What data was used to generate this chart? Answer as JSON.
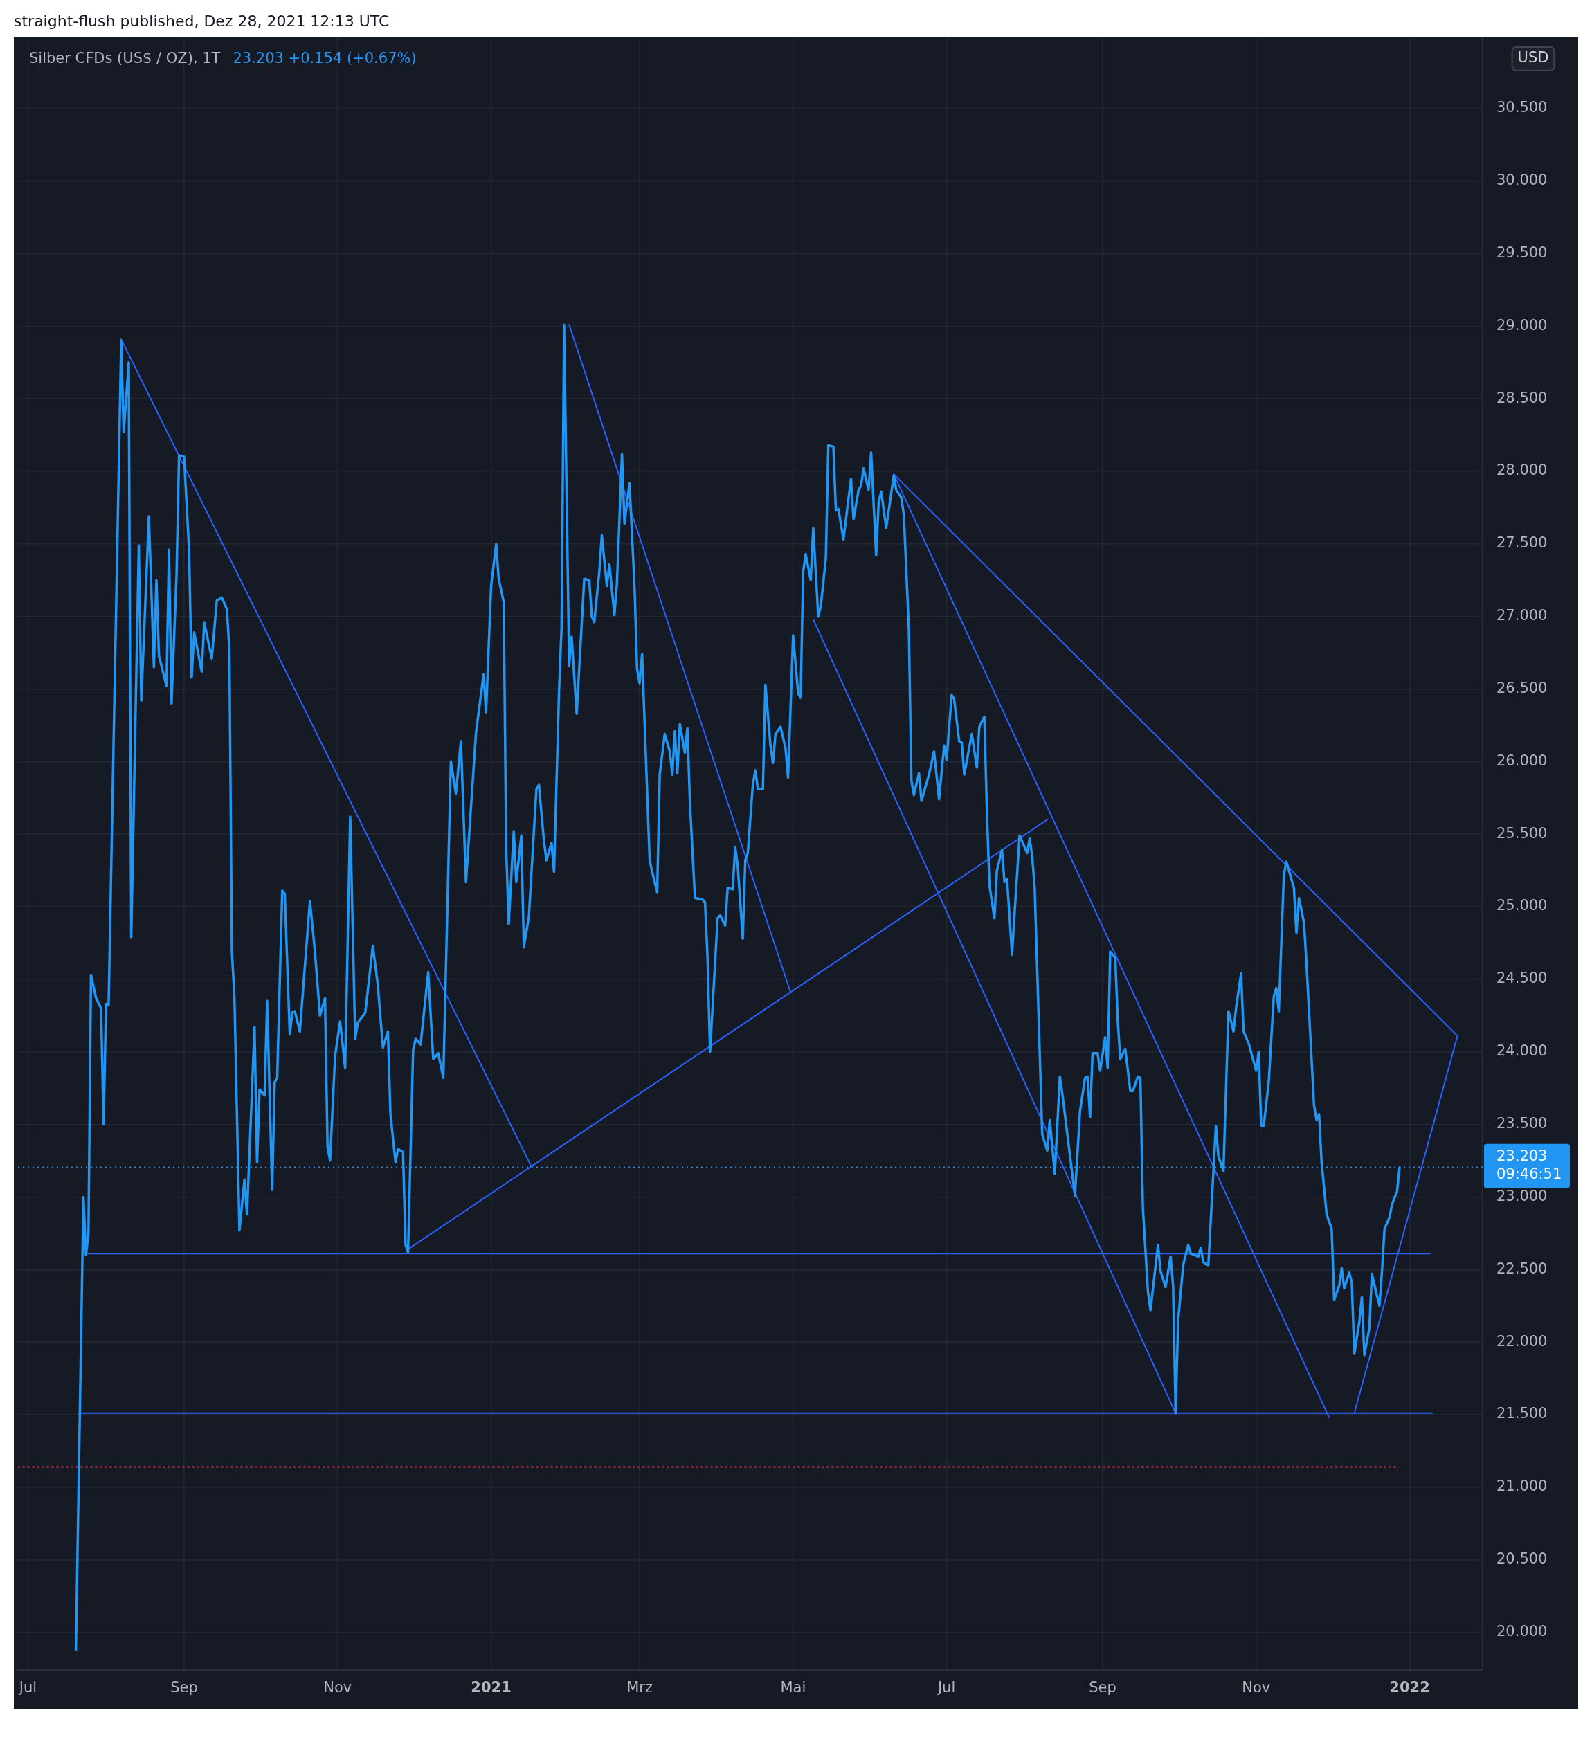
{
  "chart_data": {
    "type": "line",
    "title": "Silber CFDs (US$ / OZ), 1T",
    "subtitle": "23.203 +0.154 (+0.67%)",
    "ylabel": "USD",
    "annotations": [
      "straight-flush published, Dez 28, 2021 12:13 UTC",
      "09:46:51"
    ],
    "xlim": [
      "2020-06-27",
      "2022-01-30"
    ],
    "xticks": [
      {
        "value": "2020-07-01",
        "label": "Jul"
      },
      {
        "value": "2020-09-01",
        "label": "Sep"
      },
      {
        "value": "2020-11-01",
        "label": "Nov"
      },
      {
        "value": "2021-01-01",
        "label": "2021"
      },
      {
        "value": "2021-03-01",
        "label": "Mrz"
      },
      {
        "value": "2021-05-01",
        "label": "Mai"
      },
      {
        "value": "2021-07-01",
        "label": "Jul"
      },
      {
        "value": "2021-09-01",
        "label": "Sep"
      },
      {
        "value": "2021-11-01",
        "label": "Nov"
      },
      {
        "value": "2022-01-01",
        "label": "2022"
      }
    ],
    "ylim": [
      19.74,
      30.99
    ],
    "yticks": [
      {
        "value": 20,
        "label": "20.000"
      },
      {
        "value": 20.5,
        "label": "20.500"
      },
      {
        "value": 21,
        "label": "21.000"
      },
      {
        "value": 21.5,
        "label": "21.500"
      },
      {
        "value": 22,
        "label": "22.000"
      },
      {
        "value": 22.5,
        "label": "22.500"
      },
      {
        "value": 23,
        "label": "23.000"
      },
      {
        "value": 23.5,
        "label": "23.500"
      },
      {
        "value": 24,
        "label": "24.000"
      },
      {
        "value": 24.5,
        "label": "24.500"
      },
      {
        "value": 25,
        "label": "25.000"
      },
      {
        "value": 25.5,
        "label": "25.500"
      },
      {
        "value": 26,
        "label": "26.000"
      },
      {
        "value": 26.5,
        "label": "26.500"
      },
      {
        "value": 27,
        "label": "27.000"
      },
      {
        "value": 27.5,
        "label": "27.500"
      },
      {
        "value": 28,
        "label": "28.000"
      },
      {
        "value": 28.5,
        "label": "28.500"
      },
      {
        "value": 29,
        "label": "29.000"
      },
      {
        "value": 29.5,
        "label": "29.500"
      },
      {
        "value": 30,
        "label": "30.000"
      },
      {
        "value": 30.5,
        "label": "30.500"
      }
    ],
    "grid": true,
    "ref_lines": [
      {
        "axis": "y",
        "value": 23.203,
        "label": "23.203",
        "color": "#2196f3",
        "line_style": "dotted"
      }
    ],
    "series": [
      {
        "color": "#2196f3",
        "x": [
          "2020-07-20",
          "2020-07-23",
          "2020-07-24",
          "2020-07-25",
          "2020-07-26",
          "2020-07-28",
          "2020-07-30",
          "2020-07-31",
          "2020-08-01",
          "2020-08-02",
          "2020-08-07",
          "2020-08-08",
          "2020-08-10",
          "2020-08-11",
          "2020-08-14",
          "2020-08-15",
          "2020-08-18",
          "2020-08-20",
          "2020-08-21",
          "2020-08-22",
          "2020-08-25",
          "2020-08-26",
          "2020-08-27",
          "2020-08-29",
          "2020-08-30",
          "2020-09-01",
          "2020-09-03",
          "2020-09-04",
          "2020-09-05",
          "2020-09-08",
          "2020-09-09",
          "2020-09-12",
          "2020-09-14",
          "2020-09-16",
          "2020-09-18",
          "2020-09-19",
          "2020-09-20",
          "2020-09-21",
          "2020-09-23",
          "2020-09-25",
          "2020-09-26",
          "2020-09-29",
          "2020-09-30",
          "2020-10-01",
          "2020-10-03",
          "2020-10-04",
          "2020-10-06",
          "2020-10-07",
          "2020-10-08",
          "2020-10-10",
          "2020-10-11",
          "2020-10-13",
          "2020-10-14",
          "2020-10-15",
          "2020-10-17",
          "2020-10-21",
          "2020-10-23",
          "2020-10-25",
          "2020-10-27",
          "2020-10-28",
          "2020-10-29",
          "2020-10-31",
          "2020-11-02",
          "2020-11-04",
          "2020-11-06",
          "2020-11-08",
          "2020-11-09",
          "2020-11-12",
          "2020-11-15",
          "2020-11-17",
          "2020-11-19",
          "2020-11-21",
          "2020-11-22",
          "2020-11-24",
          "2020-11-25",
          "2020-11-27",
          "2020-11-28",
          "2020-11-29",
          "2020-12-01",
          "2020-12-02",
          "2020-12-04",
          "2020-12-07",
          "2020-12-09",
          "2020-12-11",
          "2020-12-13",
          "2020-12-16",
          "2020-12-18",
          "2020-12-20",
          "2020-12-22",
          "2020-12-26",
          "2020-12-29",
          "2020-12-30",
          "2021-01-01",
          "2021-01-03",
          "2021-01-04",
          "2021-01-06",
          "2021-01-07",
          "2021-01-08",
          "2021-01-10",
          "2021-01-11",
          "2021-01-13",
          "2021-01-14",
          "2021-01-16",
          "2021-01-19",
          "2021-01-20",
          "2021-01-22",
          "2021-01-23",
          "2021-01-25",
          "2021-01-26",
          "2021-01-28",
          "2021-01-29",
          "2021-01-30",
          "2021-02-01",
          "2021-02-02",
          "2021-02-04",
          "2021-02-07",
          "2021-02-09",
          "2021-02-10",
          "2021-02-11",
          "2021-02-13",
          "2021-02-14",
          "2021-02-16",
          "2021-02-17",
          "2021-02-19",
          "2021-02-20",
          "2021-02-22",
          "2021-02-23",
          "2021-02-25",
          "2021-02-27",
          "2021-02-28",
          "2021-03-01",
          "2021-03-02",
          "2021-03-05",
          "2021-03-06",
          "2021-03-08",
          "2021-03-09",
          "2021-03-11",
          "2021-03-13",
          "2021-03-14",
          "2021-03-15",
          "2021-03-16",
          "2021-03-17",
          "2021-03-19",
          "2021-03-20",
          "2021-03-21",
          "2021-03-23",
          "2021-03-26",
          "2021-03-27",
          "2021-03-28",
          "2021-03-29",
          "2021-04-01",
          "2021-04-02",
          "2021-04-04",
          "2021-04-05",
          "2021-04-07",
          "2021-04-08",
          "2021-04-09",
          "2021-04-11",
          "2021-04-12",
          "2021-04-13",
          "2021-04-15",
          "2021-04-16",
          "2021-04-17",
          "2021-04-19",
          "2021-04-20",
          "2021-04-22",
          "2021-04-23",
          "2021-04-24",
          "2021-04-26",
          "2021-04-28",
          "2021-04-29",
          "2021-05-01",
          "2021-05-03",
          "2021-05-04",
          "2021-05-05",
          "2021-05-06",
          "2021-05-08",
          "2021-05-09",
          "2021-05-11",
          "2021-05-12",
          "2021-05-14",
          "2021-05-15",
          "2021-05-17",
          "2021-05-18",
          "2021-05-19",
          "2021-05-21",
          "2021-05-24",
          "2021-05-25",
          "2021-05-27",
          "2021-05-28",
          "2021-05-29",
          "2021-05-31",
          "2021-06-01",
          "2021-06-03",
          "2021-06-04",
          "2021-06-05",
          "2021-06-07",
          "2021-06-10",
          "2021-06-11",
          "2021-06-13",
          "2021-06-14",
          "2021-06-16",
          "2021-06-17",
          "2021-06-18",
          "2021-06-20",
          "2021-06-21",
          "2021-06-24",
          "2021-06-26",
          "2021-06-28",
          "2021-06-30",
          "2021-07-01",
          "2021-07-03",
          "2021-07-04",
          "2021-07-06",
          "2021-07-07",
          "2021-07-08",
          "2021-07-11",
          "2021-07-13",
          "2021-07-14",
          "2021-07-16",
          "2021-07-17",
          "2021-07-18",
          "2021-07-20",
          "2021-07-21",
          "2021-07-23",
          "2021-07-24",
          "2021-07-25",
          "2021-07-27",
          "2021-07-28",
          "2021-07-30",
          "2021-07-31",
          "2021-08-02",
          "2021-08-03",
          "2021-08-04",
          "2021-08-05",
          "2021-08-08",
          "2021-08-10",
          "2021-08-11",
          "2021-08-13",
          "2021-08-15",
          "2021-08-16",
          "2021-08-21",
          "2021-08-23",
          "2021-08-25",
          "2021-08-26",
          "2021-08-27",
          "2021-08-28",
          "2021-08-30",
          "2021-08-31",
          "2021-09-02",
          "2021-09-03",
          "2021-09-04",
          "2021-09-06",
          "2021-09-07",
          "2021-09-08",
          "2021-09-10",
          "2021-09-12",
          "2021-09-13",
          "2021-09-15",
          "2021-09-16",
          "2021-09-17",
          "2021-09-19",
          "2021-09-20",
          "2021-09-23",
          "2021-09-24",
          "2021-09-26",
          "2021-09-28",
          "2021-09-29",
          "2021-09-30",
          "2021-10-01",
          "2021-10-03",
          "2021-10-05",
          "2021-10-06",
          "2021-10-09",
          "2021-10-10",
          "2021-10-11",
          "2021-10-13",
          "2021-10-16",
          "2021-10-17",
          "2021-10-19",
          "2021-10-21",
          "2021-10-23",
          "2021-10-24",
          "2021-10-26",
          "2021-10-27",
          "2021-10-29",
          "2021-11-01",
          "2021-11-02",
          "2021-11-03",
          "2021-11-04",
          "2021-11-06",
          "2021-11-08",
          "2021-11-09",
          "2021-11-10",
          "2021-11-12",
          "2021-11-13",
          "2021-11-16",
          "2021-11-17",
          "2021-11-18",
          "2021-11-20",
          "2021-11-21",
          "2021-11-24",
          "2021-11-25",
          "2021-11-26",
          "2021-11-27",
          "2021-11-29",
          "2021-12-01",
          "2021-12-02",
          "2021-12-04",
          "2021-12-05",
          "2021-12-06",
          "2021-12-08",
          "2021-12-09",
          "2021-12-10",
          "2021-12-12",
          "2021-12-13",
          "2021-12-14",
          "2021-12-16",
          "2021-12-17",
          "2021-12-19",
          "2021-12-20",
          "2021-12-21",
          "2021-12-22",
          "2021-12-24",
          "2021-12-25",
          "2021-12-27",
          "2021-12-28"
        ],
        "values": [
          19.88,
          23.0,
          22.6,
          22.75,
          24.53,
          24.37,
          24.3,
          23.5,
          24.33,
          24.32,
          28.9,
          28.27,
          28.75,
          24.79,
          27.49,
          26.42,
          27.69,
          26.65,
          27.25,
          26.73,
          26.52,
          27.46,
          26.4,
          27.29,
          28.11,
          28.1,
          27.45,
          26.58,
          26.89,
          26.62,
          26.96,
          26.71,
          27.11,
          27.13,
          27.05,
          26.77,
          24.69,
          24.38,
          22.77,
          23.12,
          22.88,
          24.17,
          23.24,
          23.74,
          23.7,
          24.35,
          23.05,
          23.79,
          23.82,
          25.11,
          25.09,
          24.12,
          24.27,
          24.28,
          24.14,
          25.04,
          24.69,
          24.25,
          24.37,
          23.35,
          23.25,
          23.97,
          24.21,
          23.89,
          25.62,
          24.09,
          24.2,
          24.27,
          24.73,
          24.46,
          24.03,
          24.14,
          23.57,
          23.24,
          23.33,
          23.31,
          22.67,
          22.62,
          24.01,
          24.09,
          24.05,
          24.55,
          23.95,
          23.99,
          23.82,
          26.0,
          25.78,
          26.14,
          25.17,
          26.2,
          26.6,
          26.34,
          27.21,
          27.5,
          27.26,
          27.1,
          25.39,
          24.88,
          25.52,
          25.17,
          25.49,
          24.72,
          24.93,
          25.81,
          25.84,
          25.45,
          25.32,
          25.44,
          25.24,
          26.49,
          26.93,
          29.01,
          26.66,
          26.86,
          26.33,
          27.26,
          27.25,
          27.0,
          26.96,
          27.31,
          27.56,
          27.21,
          27.36,
          27.01,
          27.23,
          28.12,
          27.64,
          27.92,
          27.2,
          26.64,
          26.54,
          26.74,
          25.32,
          25.24,
          25.1,
          25.91,
          26.19,
          26.07,
          25.91,
          26.21,
          25.92,
          26.26,
          26.06,
          26.23,
          25.72,
          25.06,
          25.05,
          25.03,
          24.65,
          24.0,
          24.92,
          24.94,
          24.87,
          25.13,
          25.12,
          25.41,
          25.28,
          24.78,
          25.32,
          25.37,
          25.84,
          25.94,
          25.81,
          25.81,
          26.53,
          26.11,
          25.99,
          26.19,
          26.24,
          26.09,
          25.89,
          26.87,
          26.47,
          26.44,
          27.31,
          27.43,
          27.25,
          27.61,
          27.0,
          27.07,
          27.4,
          28.18,
          28.17,
          27.73,
          27.74,
          27.53,
          27.95,
          27.67,
          27.87,
          27.9,
          28.02,
          27.87,
          28.13,
          27.42,
          27.79,
          27.86,
          27.61,
          27.97,
          27.87,
          27.82,
          27.7,
          26.91,
          25.87,
          25.77,
          25.92,
          25.73,
          25.91,
          26.07,
          25.74,
          26.11,
          26.01,
          26.46,
          26.43,
          26.14,
          26.13,
          25.91,
          26.19,
          25.96,
          26.24,
          26.31,
          25.66,
          25.15,
          24.92,
          25.25,
          25.39,
          25.17,
          25.19,
          24.67,
          24.95,
          25.49,
          25.45,
          25.37,
          25.47,
          25.35,
          25.13,
          23.43,
          23.32,
          23.53,
          23.16,
          23.83,
          23.71,
          23.01,
          23.59,
          23.82,
          23.83,
          23.55,
          23.99,
          23.99,
          23.87,
          24.1,
          23.89,
          24.69,
          24.65,
          24.22,
          23.95,
          24.02,
          23.73,
          23.73,
          23.83,
          23.82,
          22.92,
          22.35,
          22.22,
          22.67,
          22.49,
          22.38,
          22.59,
          22.39,
          21.51,
          22.15,
          22.53,
          22.67,
          22.61,
          22.59,
          22.65,
          22.55,
          22.53,
          23.49,
          23.28,
          23.18,
          24.28,
          24.14,
          24.3,
          24.54,
          24.14,
          24.06,
          23.87,
          24.0,
          23.49,
          23.49,
          23.79,
          24.38,
          24.44,
          24.28,
          25.22,
          25.31,
          25.13,
          24.82,
          25.06,
          24.89,
          24.61,
          23.63,
          23.53,
          23.57,
          23.24,
          22.88,
          22.78,
          22.29,
          22.39,
          22.51,
          22.37,
          22.48,
          22.41,
          21.92,
          22.14,
          22.31,
          21.91,
          22.1,
          22.47,
          22.32,
          22.25,
          22.49,
          22.78,
          22.86,
          22.95,
          23.04,
          23.203
        ]
      },
      {
        "type": "line",
        "color": "#2962ff",
        "x": [
          "2020-08-07",
          "2021-01-17"
        ],
        "values": [
          28.91,
          23.21
        ]
      },
      {
        "type": "line",
        "color": "#2962ff",
        "x": [
          "2020-11-29",
          "2021-08-10"
        ],
        "values": [
          22.64,
          25.6
        ]
      },
      {
        "type": "line",
        "color": "#2962ff",
        "x": [
          "2021-02-01",
          "2021-04-30"
        ],
        "values": [
          29.01,
          24.41
        ]
      },
      {
        "type": "line",
        "color": "#2962ff",
        "x": [
          "2020-07-24",
          "2022-01-09"
        ],
        "values": [
          22.61,
          22.61
        ]
      },
      {
        "type": "line",
        "color": "#2962ff",
        "x": [
          "2020-07-21",
          "2022-01-10"
        ],
        "values": [
          21.51,
          21.51
        ]
      },
      {
        "type": "line",
        "color": "#2962ff",
        "x": [
          "2021-05-09",
          "2021-09-30"
        ],
        "values": [
          26.98,
          21.51
        ]
      },
      {
        "type": "line",
        "color": "#2962ff",
        "x": [
          "2021-06-10",
          "2021-11-30"
        ],
        "values": [
          27.98,
          21.48
        ]
      },
      {
        "type": "line",
        "color": "#2962ff",
        "x": [
          "2021-06-10",
          "2022-01-20"
        ],
        "values": [
          27.98,
          24.11
        ]
      },
      {
        "type": "line",
        "color": "#2962ff",
        "x": [
          "2021-12-10",
          "2022-01-20"
        ],
        "values": [
          21.51,
          24.11
        ]
      },
      {
        "type": "line",
        "color": "#f23645",
        "line_style": "dotted",
        "x": [
          "2020-06-27",
          "2021-12-27"
        ],
        "values": [
          21.14,
          21.14
        ]
      }
    ]
  }
}
